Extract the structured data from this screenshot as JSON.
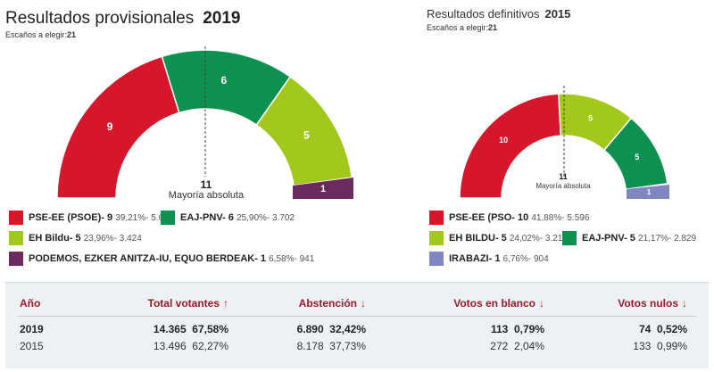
{
  "left": {
    "title": "Resultados provisionales",
    "year": "2019",
    "seats_label": "Escaños a elegir:",
    "seats": "21",
    "majority_number": "11",
    "majority_label": "Mayoría absoluta",
    "seg_labels": [
      "9",
      "6",
      "5",
      "1"
    ],
    "legend": [
      {
        "name": "PSE-EE (PSOE)- 9",
        "detail": "39,21%- 5.604",
        "color": "#d6162b"
      },
      {
        "name": "EAJ-PNV- 6",
        "detail": "25,90%- 3.702",
        "color": "#0e9150"
      },
      {
        "name": "EH Bildu- 5",
        "detail": "23,96%- 3.424",
        "color": "#a2c81c"
      },
      {
        "name": "PODEMOS, EZKER ANITZA-IU, EQUO BERDEAK- 1",
        "detail": "6,58%- 941",
        "color": "#6b2b5f"
      }
    ]
  },
  "right": {
    "title": "Resultados definitivos",
    "year": "2015",
    "seats_label": "Escaños a elegir:",
    "seats": "21",
    "majority_number": "11",
    "majority_label": "Mayoría absoluta",
    "seg_labels": [
      "10",
      "5",
      "5",
      "1"
    ],
    "legend": [
      {
        "name": "PSE-EE (PSO- 10",
        "detail": "41,88%- 5.596",
        "color": "#d6162b"
      },
      {
        "name": "EH BILDU- 5",
        "detail": "24,02%- 3.210",
        "color": "#a2c81c"
      },
      {
        "name": "EAJ-PNV- 5",
        "detail": "21,17%- 2.829",
        "color": "#0e9150"
      },
      {
        "name": "IRABAZI- 1",
        "detail": "6,76%- 904",
        "color": "#7f86c0"
      }
    ]
  },
  "table": {
    "headers": {
      "year": "Año",
      "total": "Total votantes",
      "abst": "Abstención",
      "blank": "Votos en blanco",
      "null": "Votos nulos"
    },
    "arrows": {
      "total": "↑",
      "abst": "↓",
      "blank": "↓",
      "null": "↓"
    },
    "rows": [
      {
        "year": "2019",
        "total_n": "14.365",
        "total_p": "67,58%",
        "abst_n": "6.890",
        "abst_p": "32,42%",
        "blank_n": "113",
        "blank_p": "0,79%",
        "null_n": "74",
        "null_p": "0,52%"
      },
      {
        "year": "2015",
        "total_n": "13.496",
        "total_p": "62,27%",
        "abst_n": "8.178",
        "abst_p": "37,73%",
        "blank_n": "272",
        "blank_p": "2,04%",
        "null_n": "133",
        "null_p": "0,99%"
      }
    ]
  }
}
